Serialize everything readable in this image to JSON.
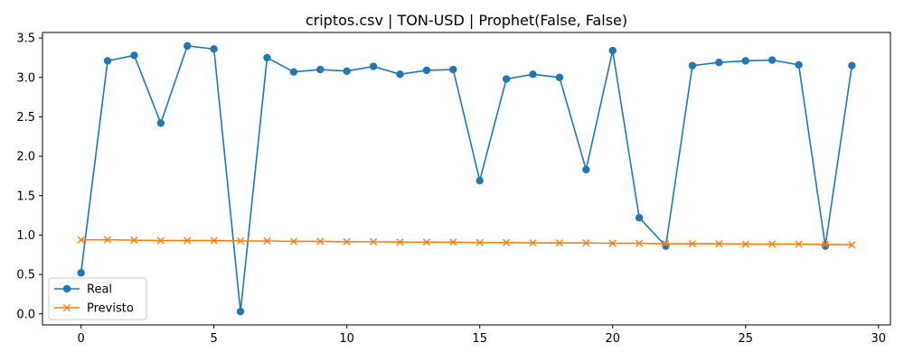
{
  "chart_data": {
    "type": "line",
    "title": "criptos.csv | TON-USD | Prophet(False, False)",
    "xlabel": "",
    "ylabel": "",
    "xlim": [
      -1.45,
      30.45
    ],
    "ylim": [
      -0.14,
      3.57
    ],
    "x_ticks": [
      0,
      5,
      10,
      15,
      20,
      25,
      30
    ],
    "y_ticks": [
      0.0,
      0.5,
      1.0,
      1.5,
      2.0,
      2.5,
      3.0,
      3.5
    ],
    "y_tick_labels": [
      "0.0",
      "0.5",
      "1.0",
      "1.5",
      "2.0",
      "2.5",
      "3.0",
      "3.5"
    ],
    "grid": false,
    "legend": "lower-left",
    "x": [
      0,
      1,
      2,
      3,
      4,
      5,
      6,
      7,
      8,
      9,
      10,
      11,
      12,
      13,
      14,
      15,
      16,
      17,
      18,
      19,
      20,
      21,
      22,
      23,
      24,
      25,
      26,
      27,
      28,
      29
    ],
    "series": [
      {
        "name": "Real",
        "marker": "circle",
        "color": "#1f77b4",
        "values": [
          0.52,
          3.21,
          3.28,
          2.42,
          3.4,
          3.36,
          0.03,
          3.25,
          3.07,
          3.1,
          3.08,
          3.14,
          3.04,
          3.09,
          3.1,
          1.69,
          2.98,
          3.04,
          3.0,
          1.83,
          3.34,
          1.22,
          0.86,
          3.15,
          3.19,
          3.21,
          3.22,
          3.16,
          0.86,
          3.15
        ]
      },
      {
        "name": "Previsto",
        "marker": "x",
        "color": "#ff7f0e",
        "values": [
          0.94,
          0.94,
          0.935,
          0.93,
          0.93,
          0.93,
          0.925,
          0.925,
          0.92,
          0.92,
          0.915,
          0.915,
          0.91,
          0.91,
          0.91,
          0.905,
          0.905,
          0.9,
          0.9,
          0.9,
          0.895,
          0.895,
          0.89,
          0.89,
          0.89,
          0.885,
          0.885,
          0.885,
          0.88,
          0.875
        ]
      }
    ]
  }
}
